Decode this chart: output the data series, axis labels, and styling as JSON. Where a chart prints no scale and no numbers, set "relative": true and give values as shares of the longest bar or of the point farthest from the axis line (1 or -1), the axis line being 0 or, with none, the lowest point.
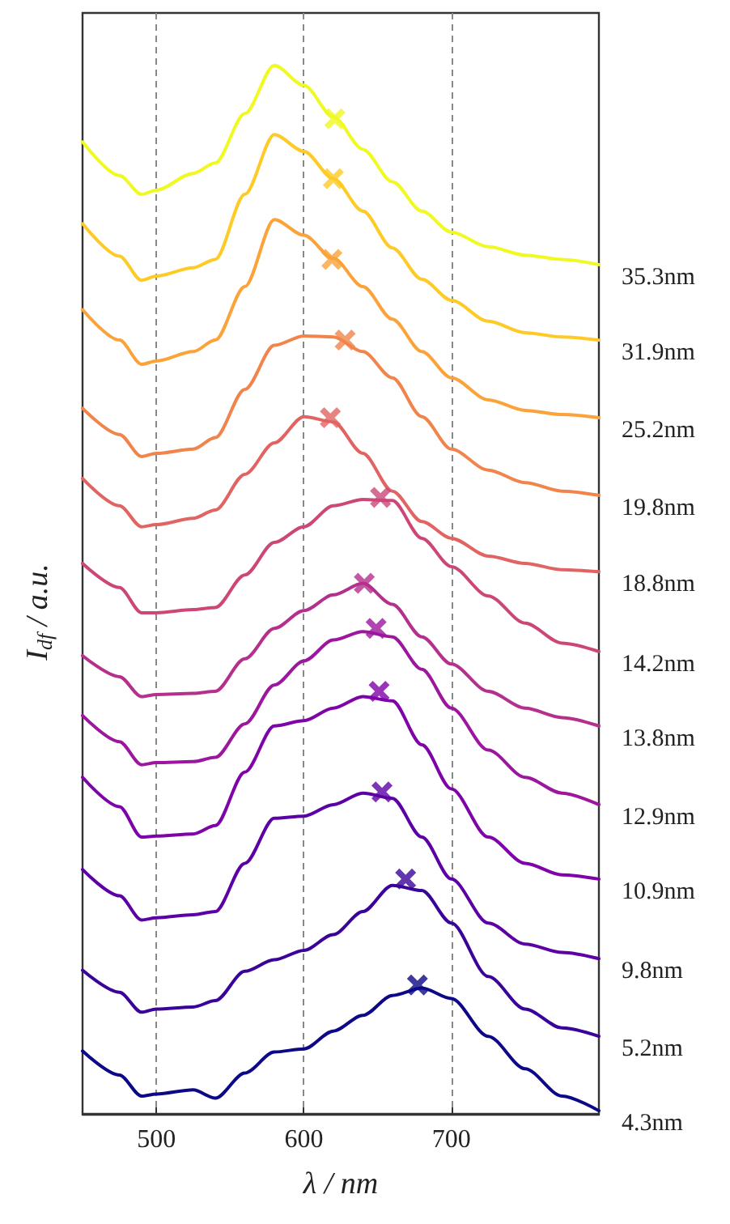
{
  "chart_data": {
    "type": "line",
    "relative": true,
    "xlabel": "λ / nm",
    "ylabel": "I$_{df}$ / a.u.",
    "x": [
      450,
      475,
      490,
      500,
      525,
      540,
      560,
      580,
      600,
      620,
      640,
      660,
      680,
      700,
      725,
      750,
      775,
      800
    ],
    "xlim": [
      450,
      800
    ],
    "xticks": [
      500,
      600,
      700
    ],
    "grid": "x",
    "series": [
      {
        "name": "35.3nm",
        "color": "#f0f921",
        "values": [
          0.927,
          0.895,
          0.877,
          0.881,
          0.897,
          0.907,
          0.954,
          1.0,
          0.981,
          0.951,
          0.92,
          0.889,
          0.861,
          0.841,
          0.827,
          0.819,
          0.815,
          0.81
        ]
      },
      {
        "name": "31.9nm",
        "color": "#fdca26",
        "values": [
          0.849,
          0.818,
          0.795,
          0.799,
          0.807,
          0.815,
          0.877,
          0.934,
          0.918,
          0.892,
          0.861,
          0.826,
          0.796,
          0.776,
          0.756,
          0.745,
          0.741,
          0.738
        ]
      },
      {
        "name": "25.2nm",
        "color": "#fba238",
        "values": [
          0.767,
          0.738,
          0.715,
          0.718,
          0.727,
          0.738,
          0.789,
          0.853,
          0.838,
          0.816,
          0.789,
          0.758,
          0.727,
          0.702,
          0.681,
          0.671,
          0.667,
          0.664
        ]
      },
      {
        "name": "19.8nm",
        "color": "#f1844b",
        "values": [
          0.673,
          0.648,
          0.627,
          0.63,
          0.634,
          0.645,
          0.691,
          0.733,
          0.742,
          0.741,
          0.727,
          0.702,
          0.665,
          0.634,
          0.614,
          0.602,
          0.594,
          0.59
        ]
      },
      {
        "name": "18.8nm",
        "color": "#e16462",
        "values": [
          0.606,
          0.58,
          0.56,
          0.562,
          0.568,
          0.576,
          0.61,
          0.64,
          0.665,
          0.66,
          0.63,
          0.594,
          0.565,
          0.549,
          0.532,
          0.525,
          0.519,
          0.517
        ]
      },
      {
        "name": "14.2nm",
        "color": "#cc4778",
        "values": [
          0.525,
          0.502,
          0.478,
          0.478,
          0.481,
          0.483,
          0.514,
          0.545,
          0.56,
          0.58,
          0.586,
          0.585,
          0.549,
          0.522,
          0.494,
          0.468,
          0.449,
          0.441
        ]
      },
      {
        "name": "13.8nm",
        "color": "#b52f8c",
        "values": [
          0.437,
          0.417,
          0.398,
          0.4,
          0.401,
          0.403,
          0.434,
          0.463,
          0.48,
          0.495,
          0.506,
          0.486,
          0.455,
          0.429,
          0.403,
          0.387,
          0.378,
          0.37
        ]
      },
      {
        "name": "12.9nm",
        "color": "#9c179e",
        "values": [
          0.38,
          0.355,
          0.333,
          0.335,
          0.336,
          0.34,
          0.372,
          0.409,
          0.432,
          0.452,
          0.46,
          0.455,
          0.424,
          0.387,
          0.347,
          0.321,
          0.306,
          0.295
        ]
      },
      {
        "name": "10.9nm",
        "color": "#7e03a8",
        "values": [
          0.321,
          0.293,
          0.264,
          0.265,
          0.267,
          0.275,
          0.326,
          0.37,
          0.375,
          0.387,
          0.398,
          0.394,
          0.352,
          0.31,
          0.264,
          0.239,
          0.228,
          0.224
        ]
      },
      {
        "name": "9.8nm",
        "color": "#5c01a6",
        "values": [
          0.233,
          0.208,
          0.185,
          0.187,
          0.19,
          0.193,
          0.239,
          0.282,
          0.284,
          0.295,
          0.306,
          0.301,
          0.264,
          0.224,
          0.182,
          0.162,
          0.154,
          0.148
        ]
      },
      {
        "name": "5.2nm",
        "color": "#3a049a",
        "values": [
          0.137,
          0.116,
          0.097,
          0.1,
          0.102,
          0.108,
          0.136,
          0.147,
          0.156,
          0.171,
          0.193,
          0.218,
          0.213,
          0.182,
          0.131,
          0.1,
          0.082,
          0.074
        ]
      },
      {
        "name": "4.3nm",
        "color": "#0d0887",
        "values": [
          0.06,
          0.037,
          0.017,
          0.019,
          0.023,
          0.015,
          0.039,
          0.059,
          0.062,
          0.079,
          0.094,
          0.113,
          0.12,
          0.11,
          0.074,
          0.043,
          0.017,
          0.003
        ]
      },
      {
        "type": "scatter",
        "marker": "cross",
        "x": [
          621,
          620,
          619,
          628,
          618,
          652,
          641,
          649,
          651,
          653,
          669,
          677
        ],
        "values": [
          0.949,
          0.892,
          0.815,
          0.738,
          0.664,
          0.588,
          0.506,
          0.463,
          0.403,
          0.307,
          0.224,
          0.123
        ],
        "colors": [
          "#f0f921",
          "#fdca26",
          "#fba238",
          "#f1844b",
          "#e16462",
          "#cc4778",
          "#b52f8c",
          "#9c179e",
          "#7e03a8",
          "#5c01a6",
          "#3a049a",
          "#0d0887"
        ]
      }
    ]
  }
}
